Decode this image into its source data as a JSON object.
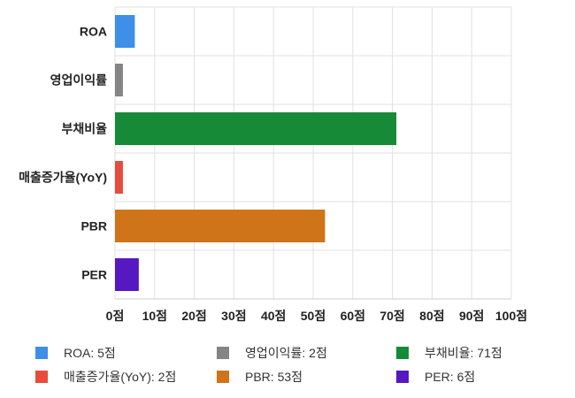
{
  "chart_data": {
    "type": "bar",
    "orientation": "horizontal",
    "categories": [
      "ROA",
      "영업이익률",
      "부채비율",
      "매출증가율(YoY)",
      "PBR",
      "PER"
    ],
    "values": [
      5,
      2,
      71,
      2,
      53,
      6
    ],
    "colors": [
      "#3d8fe8",
      "#858585",
      "#178a38",
      "#e84c3d",
      "#cf7418",
      "#5618c0"
    ],
    "xlim": [
      0,
      100
    ],
    "xticks": [
      "0점",
      "10점",
      "20점",
      "30점",
      "40점",
      "50점",
      "60점",
      "70점",
      "80점",
      "90점",
      "100점"
    ],
    "grid": true,
    "legend_position": "bottom",
    "legend": [
      {
        "label": "ROA: 5점",
        "color": "#3d8fe8"
      },
      {
        "label": "영업이익률: 2점",
        "color": "#858585"
      },
      {
        "label": "부채비율: 71점",
        "color": "#178a38"
      },
      {
        "label": "매출증가율(YoY): 2점",
        "color": "#e84c3d"
      },
      {
        "label": "PBR: 53점",
        "color": "#cf7418"
      },
      {
        "label": "PER: 6점",
        "color": "#5618c0"
      }
    ]
  }
}
